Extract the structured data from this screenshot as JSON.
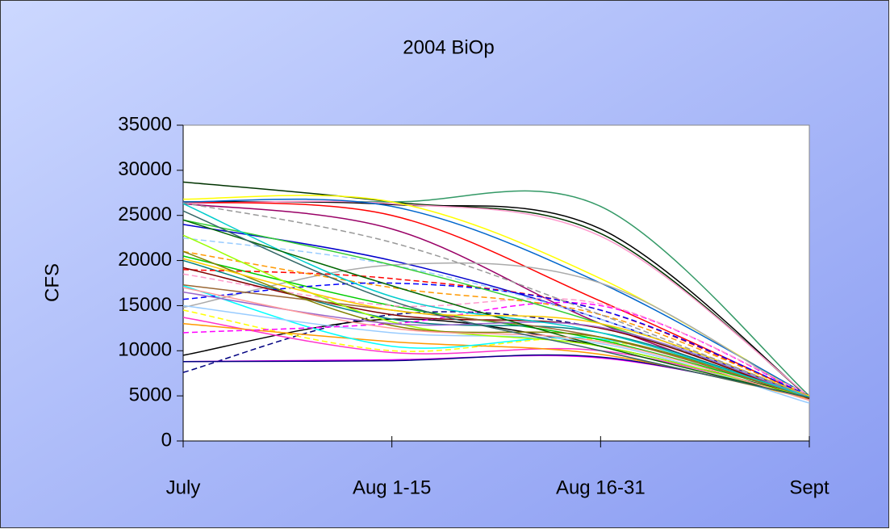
{
  "chart_data": {
    "type": "line",
    "title": "2004 BiOp",
    "y_label": "CFS",
    "categories": [
      "July",
      "Aug 1-15",
      "Aug 16-31",
      "Sept"
    ],
    "ylim": [
      0,
      35000
    ],
    "yticks": [
      0,
      5000,
      10000,
      15000,
      20000,
      25000,
      30000,
      35000
    ],
    "grid": false,
    "smooth": true,
    "series": [
      {
        "color": "#003300",
        "values": [
          28700,
          26500,
          23000,
          4800
        ]
      },
      {
        "color": "#339966",
        "values": [
          26500,
          26500,
          26000,
          5000
        ]
      },
      {
        "color": "#000000",
        "values": [
          26500,
          26200,
          23500,
          4800
        ]
      },
      {
        "color": "#ff99cc",
        "values": [
          26300,
          26300,
          22700,
          4900
        ]
      },
      {
        "color": "#ff0000",
        "values": [
          26500,
          25000,
          15500,
          4900
        ]
      },
      {
        "color": "#ffff00",
        "values": [
          26800,
          26500,
          18000,
          4800
        ]
      },
      {
        "color": "#0066cc",
        "values": [
          26500,
          26000,
          17500,
          5000
        ]
      },
      {
        "color": "#990066",
        "values": [
          26300,
          23500,
          13000,
          4800
        ]
      },
      {
        "color": "#0000cc",
        "values": [
          24000,
          20000,
          13500,
          4900
        ]
      },
      {
        "color": "#aaaaaa",
        "values": [
          14800,
          19500,
          17500,
          4500
        ]
      },
      {
        "color": "#000080",
        "dash": true,
        "values": [
          7600,
          14000,
          12500,
          5000
        ]
      },
      {
        "color": "#000000",
        "values": [
          9500,
          13500,
          10500,
          4900
        ]
      },
      {
        "color": "#ff00ff",
        "values": [
          8800,
          9000,
          9200,
          5000
        ]
      },
      {
        "color": "#ff33cc",
        "values": [
          13700,
          9800,
          10000,
          4800
        ]
      },
      {
        "color": "#000080",
        "values": [
          8800,
          8900,
          9300,
          4800
        ]
      },
      {
        "color": "#ffff00",
        "dash": true,
        "values": [
          14500,
          10000,
          11200,
          4800
        ]
      },
      {
        "color": "#ff9900",
        "values": [
          13000,
          11000,
          9600,
          4700
        ]
      },
      {
        "color": "#00ffff",
        "values": [
          17200,
          10500,
          11300,
          4900
        ]
      },
      {
        "color": "#99ccff",
        "values": [
          15000,
          12000,
          10800,
          4200
        ]
      },
      {
        "color": "#00cc00",
        "values": [
          20500,
          15000,
          11200,
          4900
        ]
      },
      {
        "color": "#008080",
        "values": [
          20000,
          13500,
          12000,
          4800
        ]
      },
      {
        "color": "#ff0000",
        "dash": true,
        "values": [
          19000,
          18000,
          14500,
          4900
        ]
      },
      {
        "color": "#ff00ff",
        "dash": true,
        "values": [
          12000,
          13000,
          15000,
          5000
        ]
      },
      {
        "color": "#ff99cc",
        "dash": true,
        "values": [
          18500,
          15000,
          15200,
          5100
        ]
      },
      {
        "color": "#ff9900",
        "dash": true,
        "values": [
          21000,
          17000,
          14000,
          5000
        ]
      },
      {
        "color": "#0000ff",
        "dash": true,
        "values": [
          15700,
          17500,
          14500,
          5000
        ]
      },
      {
        "color": "#99ccff",
        "dash": true,
        "values": [
          22500,
          19500,
          13500,
          4800
        ]
      },
      {
        "color": "#33cc33",
        "values": [
          24500,
          19500,
          13000,
          4900
        ]
      },
      {
        "color": "#800000",
        "values": [
          19200,
          14000,
          12500,
          4700
        ]
      },
      {
        "color": "#996633",
        "values": [
          17300,
          14500,
          11500,
          4800
        ]
      },
      {
        "color": "#99ff00",
        "values": [
          22800,
          13200,
          10500,
          4800
        ]
      },
      {
        "color": "#808000",
        "values": [
          21000,
          12800,
          11500,
          4900
        ]
      },
      {
        "color": "#9966cc",
        "values": [
          16500,
          13000,
          12600,
          4800
        ]
      },
      {
        "color": "#00cccc",
        "values": [
          26300,
          16000,
          12000,
          4900
        ]
      },
      {
        "color": "#006600",
        "values": [
          24500,
          17200,
          10500,
          4800
        ]
      },
      {
        "color": "#ffcc00",
        "values": [
          20200,
          14500,
          13000,
          5000
        ]
      },
      {
        "color": "#ff9999",
        "values": [
          17000,
          12500,
          11000,
          4500
        ]
      },
      {
        "color": "#999999",
        "dash": true,
        "values": [
          26400,
          22000,
          14000,
          4900
        ]
      },
      {
        "color": "#336666",
        "values": [
          25500,
          15500,
          10000,
          4800
        ]
      }
    ]
  }
}
